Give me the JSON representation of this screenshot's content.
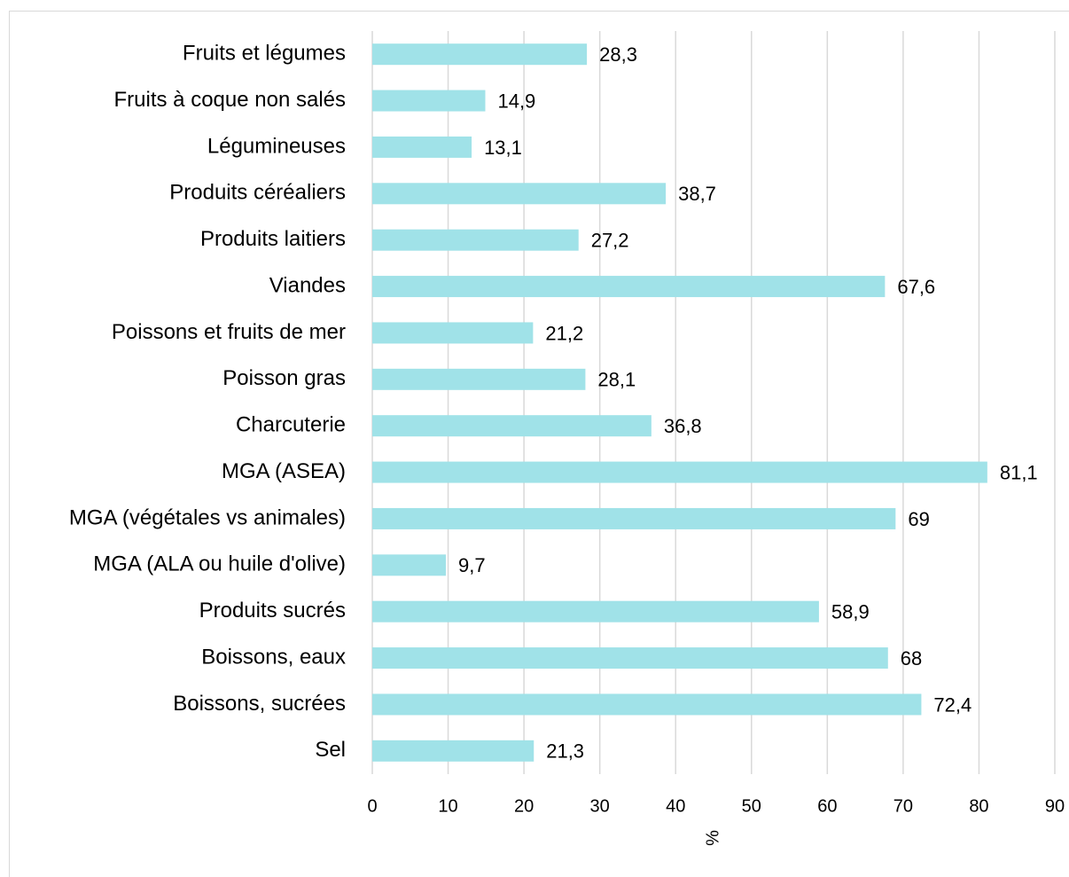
{
  "chart_data": {
    "type": "barh",
    "categories": [
      "Fruits et légumes",
      "Fruits à coque non salés",
      "Légumineuses",
      "Produits céréaliers",
      "Produits laitiers",
      "Viandes",
      "Poissons et fruits de mer",
      "Poisson gras",
      "Charcuterie",
      "MGA (ASEA)",
      "MGA (végétales vs animales)",
      "MGA (ALA ou huile d'olive)",
      "Produits sucrés",
      "Boissons, eaux",
      "Boissons, sucrées",
      "Sel"
    ],
    "values": [
      28.3,
      14.9,
      13.1,
      38.7,
      27.2,
      67.6,
      21.2,
      28.1,
      36.8,
      81.1,
      69,
      9.7,
      58.9,
      68,
      72.4,
      21.3
    ],
    "value_labels": [
      "28,3",
      "14,9",
      "13,1",
      "38,7",
      "27,2",
      "67,6",
      "21,2",
      "28,1",
      "36,8",
      "81,1",
      "69",
      "9,7",
      "58,9",
      "68",
      "72,4",
      "21,3"
    ],
    "color": "#a0e2e8",
    "xlabel": "%",
    "xlim": [
      0,
      90
    ],
    "xticks": [
      0,
      10,
      20,
      30,
      40,
      50,
      60,
      70,
      80,
      90
    ],
    "grid": true
  }
}
